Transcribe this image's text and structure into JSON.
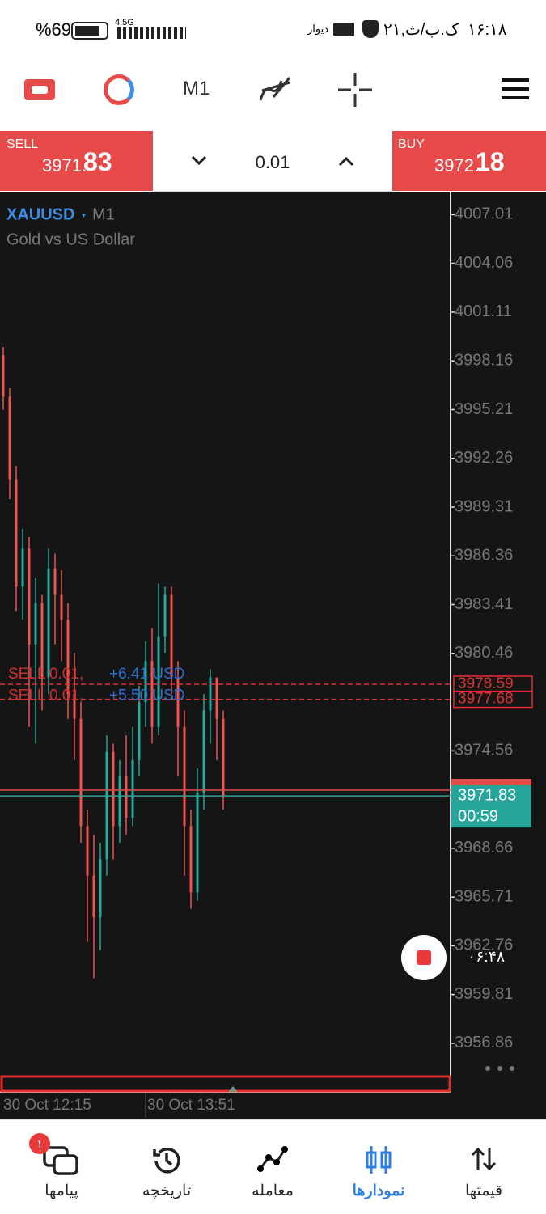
{
  "status_bar": {
    "time": "۱۶:۱۸",
    "date": "۲۱,ک.ب/ث",
    "app": "دیوار",
    "network": "4.5G",
    "battery": "%69"
  },
  "toolbar": {
    "timeframe": "M1"
  },
  "trade_panel": {
    "sell": {
      "label": "SELL",
      "price_main": "3971.",
      "price_pips": "83"
    },
    "lot": 0.01,
    "buy": {
      "label": "BUY",
      "price_main": "3972.",
      "price_pips": "18"
    }
  },
  "chart": {
    "symbol": "XAUUSD",
    "timeframe": "M1",
    "description": "Gold vs US Dollar",
    "ylim": [
      3954.9,
      4008.4
    ],
    "yticks": [
      4007.01,
      4004.06,
      4001.11,
      3998.16,
      3995.21,
      3992.26,
      3989.31,
      3986.36,
      3983.41,
      3980.46,
      3974.56,
      3968.66,
      3965.71,
      3962.76,
      3959.81,
      3956.86
    ],
    "candles": {
      "open": [
        3998.5,
        3996.0,
        3991.0,
        3984.5,
        3986.8,
        3981.0,
        3983.5,
        3979.0,
        3985.6,
        3984.0,
        3982.5,
        3978.0,
        3976.5,
        3970.0,
        3967.0,
        3964.5,
        3968.0,
        3974.5,
        3970.0,
        3973.0,
        3970.5,
        3974.0,
        3977.5,
        3980.0,
        3976.0,
        3981.5,
        3984.0,
        3979.0,
        3976.0,
        3970.0,
        3966.0,
        3972.0,
        3977.0,
        3979.0,
        3976.5
      ],
      "high": [
        3999.0,
        3996.5,
        3991.8,
        3988.0,
        3987.5,
        3985.0,
        3984.0,
        3986.8,
        3986.5,
        3985.5,
        3983.5,
        3980.5,
        3977.5,
        3971.0,
        3969.5,
        3969.0,
        3975.5,
        3975.0,
        3974.0,
        3975.5,
        3976.0,
        3978.5,
        3981.2,
        3982.0,
        3984.7,
        3984.5,
        3984.5,
        3980.0,
        3977.0,
        3971.0,
        3973.5,
        3978.0,
        3979.5,
        3979.0,
        3977.0
      ],
      "low": [
        3995.2,
        3989.8,
        3983.0,
        3982.5,
        3976.0,
        3975.0,
        3977.0,
        3978.0,
        3981.0,
        3980.0,
        3976.5,
        3974.0,
        3969.0,
        3963.0,
        3960.8,
        3962.5,
        3967.0,
        3968.0,
        3969.0,
        3969.5,
        3970.0,
        3973.0,
        3976.0,
        3975.0,
        3975.5,
        3980.5,
        3978.0,
        3973.0,
        3967.0,
        3965.0,
        3965.5,
        3971.0,
        3975.0,
        3974.0,
        3971.0
      ],
      "close": [
        3996.0,
        3991.0,
        3984.5,
        3986.8,
        3981.0,
        3983.5,
        3979.0,
        3985.6,
        3984.0,
        3982.5,
        3978.0,
        3976.5,
        3970.0,
        3967.0,
        3964.5,
        3968.0,
        3974.5,
        3970.0,
        3973.0,
        3970.5,
        3974.0,
        3977.5,
        3980.0,
        3976.0,
        3981.5,
        3984.0,
        3979.0,
        3976.0,
        3970.0,
        3966.0,
        3972.0,
        3977.0,
        3979.0,
        3976.5,
        3971.8
      ]
    },
    "up_color": "#26a69a",
    "down_color": "#ef5350",
    "orders": [
      {
        "label": "SELL 0.01,",
        "profit": "+6.41 USD",
        "price": 3978.59
      },
      {
        "label": "SELL 0.01,",
        "profit": "+5.50 USD",
        "price": 3977.68
      }
    ],
    "bid": 3971.83,
    "ask": 3972.18,
    "timer": "00:59",
    "xticks": [
      "30 Oct 12:15",
      "30 Oct 13:51"
    ]
  },
  "recording": {
    "time": "۰۶:۴۸"
  },
  "bottom_nav": {
    "items": [
      "قیمتها",
      "نمودارها",
      "معامله",
      "تاریخچه",
      "پیامها"
    ],
    "badge": "۱"
  }
}
